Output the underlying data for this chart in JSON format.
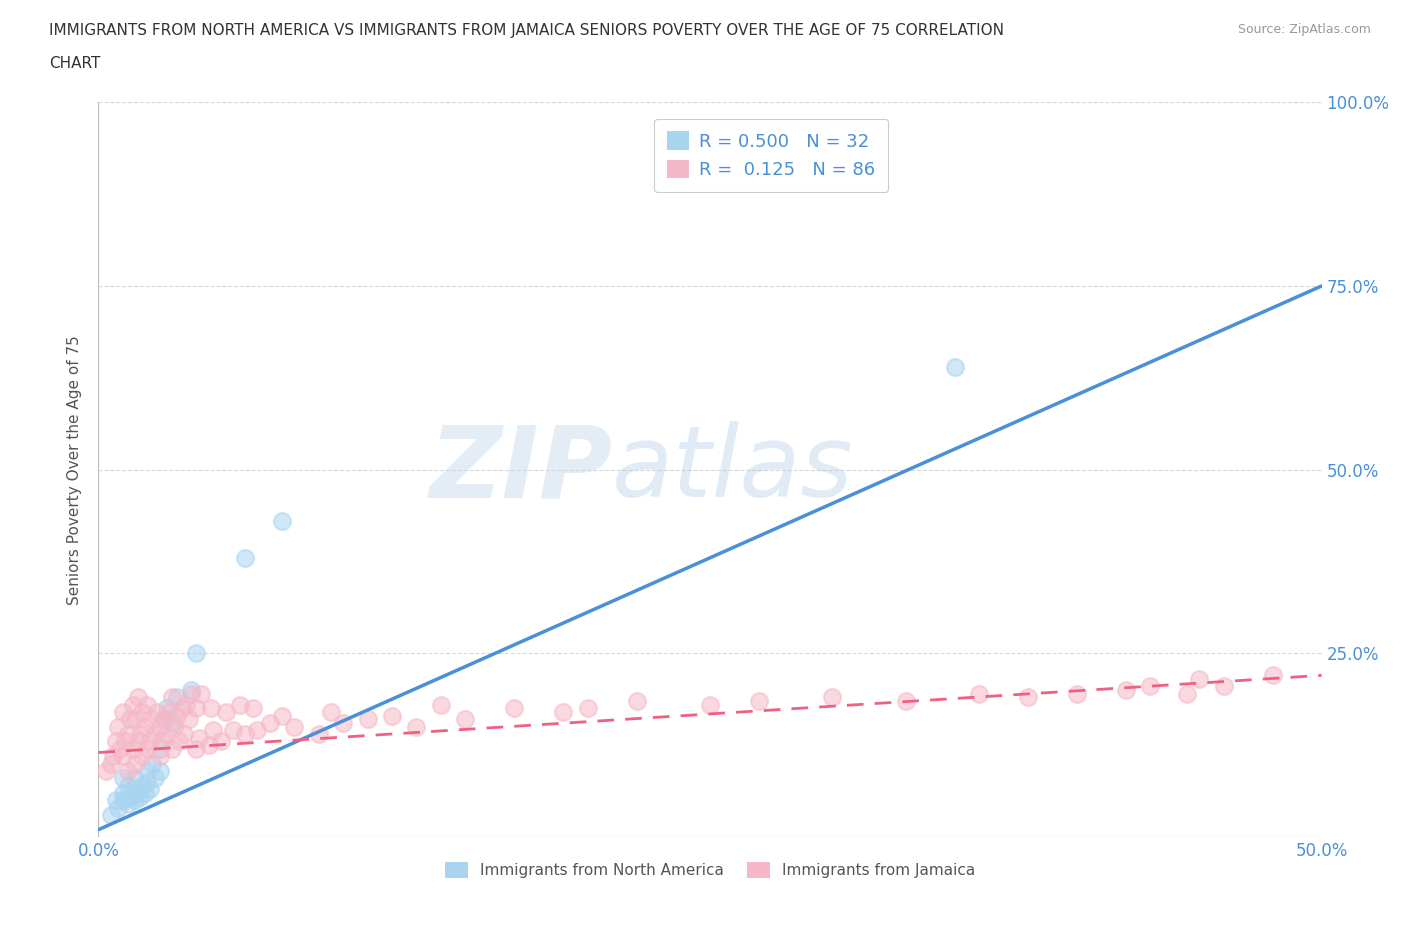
{
  "title_line1": "IMMIGRANTS FROM NORTH AMERICA VS IMMIGRANTS FROM JAMAICA SENIORS POVERTY OVER THE AGE OF 75 CORRELATION",
  "title_line2": "CHART",
  "source": "Source: ZipAtlas.com",
  "ylabel": "Seniors Poverty Over the Age of 75",
  "xlim": [
    0,
    0.5
  ],
  "ylim": [
    0,
    1.0
  ],
  "xticks": [
    0.0,
    0.1,
    0.2,
    0.3,
    0.4,
    0.5
  ],
  "xticklabels": [
    "0.0%",
    "",
    "",
    "",
    "",
    "50.0%"
  ],
  "ytick_positions": [
    0.0,
    0.25,
    0.5,
    0.75,
    1.0
  ],
  "yticklabels": [
    "",
    "25.0%",
    "50.0%",
    "75.0%",
    "100.0%"
  ],
  "r_blue": 0.5,
  "n_blue": 32,
  "r_pink": 0.125,
  "n_pink": 86,
  "blue_color": "#a8d4f0",
  "pink_color": "#f5b8c8",
  "blue_line_color": "#4a90d9",
  "pink_line_color": "#f06080",
  "watermark_zip": "ZIP",
  "watermark_atlas": "atlas",
  "blue_scatter_x": [
    0.005,
    0.007,
    0.008,
    0.01,
    0.01,
    0.01,
    0.012,
    0.012,
    0.013,
    0.014,
    0.015,
    0.015,
    0.016,
    0.017,
    0.018,
    0.019,
    0.02,
    0.02,
    0.021,
    0.022,
    0.023,
    0.025,
    0.025,
    0.027,
    0.028,
    0.03,
    0.032,
    0.038,
    0.04,
    0.06,
    0.075,
    0.35
  ],
  "blue_scatter_y": [
    0.03,
    0.05,
    0.04,
    0.06,
    0.08,
    0.05,
    0.045,
    0.07,
    0.055,
    0.065,
    0.05,
    0.08,
    0.06,
    0.055,
    0.07,
    0.06,
    0.075,
    0.09,
    0.065,
    0.1,
    0.08,
    0.09,
    0.12,
    0.16,
    0.175,
    0.155,
    0.19,
    0.2,
    0.25,
    0.38,
    0.43,
    0.64
  ],
  "pink_scatter_x": [
    0.003,
    0.005,
    0.006,
    0.007,
    0.008,
    0.009,
    0.01,
    0.01,
    0.011,
    0.012,
    0.012,
    0.013,
    0.014,
    0.014,
    0.015,
    0.015,
    0.016,
    0.016,
    0.017,
    0.018,
    0.018,
    0.019,
    0.02,
    0.02,
    0.021,
    0.022,
    0.023,
    0.024,
    0.025,
    0.025,
    0.026,
    0.027,
    0.028,
    0.029,
    0.03,
    0.03,
    0.031,
    0.032,
    0.033,
    0.034,
    0.035,
    0.036,
    0.037,
    0.038,
    0.04,
    0.04,
    0.041,
    0.042,
    0.045,
    0.046,
    0.047,
    0.05,
    0.052,
    0.055,
    0.058,
    0.06,
    0.063,
    0.065,
    0.07,
    0.075,
    0.08,
    0.09,
    0.095,
    0.1,
    0.11,
    0.12,
    0.13,
    0.14,
    0.15,
    0.17,
    0.19,
    0.2,
    0.22,
    0.25,
    0.27,
    0.3,
    0.33,
    0.36,
    0.38,
    0.4,
    0.42,
    0.43,
    0.445,
    0.45,
    0.46,
    0.48
  ],
  "pink_scatter_y": [
    0.09,
    0.1,
    0.11,
    0.13,
    0.15,
    0.12,
    0.11,
    0.17,
    0.13,
    0.09,
    0.14,
    0.16,
    0.12,
    0.18,
    0.1,
    0.16,
    0.13,
    0.19,
    0.14,
    0.11,
    0.17,
    0.15,
    0.12,
    0.18,
    0.13,
    0.16,
    0.14,
    0.17,
    0.11,
    0.15,
    0.13,
    0.16,
    0.14,
    0.17,
    0.12,
    0.19,
    0.15,
    0.165,
    0.13,
    0.175,
    0.14,
    0.18,
    0.16,
    0.195,
    0.12,
    0.175,
    0.135,
    0.195,
    0.125,
    0.175,
    0.145,
    0.13,
    0.17,
    0.145,
    0.18,
    0.14,
    0.175,
    0.145,
    0.155,
    0.165,
    0.15,
    0.14,
    0.17,
    0.155,
    0.16,
    0.165,
    0.15,
    0.18,
    0.16,
    0.175,
    0.17,
    0.175,
    0.185,
    0.18,
    0.185,
    0.19,
    0.185,
    0.195,
    0.19,
    0.195,
    0.2,
    0.205,
    0.195,
    0.215,
    0.205,
    0.22
  ],
  "blue_trend_x": [
    0.0,
    0.5
  ],
  "blue_trend_y": [
    0.01,
    0.75
  ],
  "pink_trend_x": [
    0.0,
    0.5
  ],
  "pink_trend_y": [
    0.115,
    0.22
  ],
  "background_color": "#ffffff",
  "grid_color": "#d8d8d8",
  "tick_color": "#4a90d9",
  "bottom_legend": [
    {
      "label": "Immigrants from North America",
      "color": "#a8d4f0"
    },
    {
      "label": "Immigrants from Jamaica",
      "color": "#f5b8c8"
    }
  ]
}
